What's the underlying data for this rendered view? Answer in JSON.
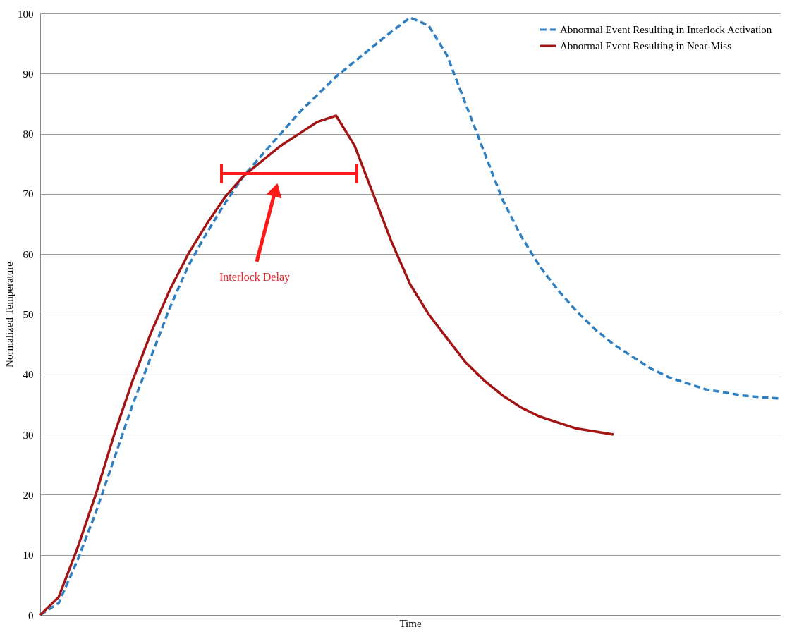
{
  "chart_data": {
    "type": "line",
    "xlabel": "Time",
    "ylabel": "Normalized Temperature",
    "categories": [
      null,
      null,
      null,
      null,
      null,
      null,
      null,
      null,
      null,
      null,
      null,
      null,
      null,
      null,
      null,
      null,
      null,
      null,
      null,
      null,
      null,
      null,
      null,
      null,
      null,
      null,
      null,
      null,
      null,
      null,
      null,
      null,
      null,
      null,
      null,
      null,
      null,
      null,
      null,
      null,
      null
    ],
    "series": [
      {
        "name": "Abnormal Event Resulting in Interlock Activation",
        "color": "#2e7fc1",
        "line_style": "dashed",
        "values": [
          0,
          2,
          9,
          17,
          26,
          35,
          43,
          51,
          58,
          63.5,
          68.5,
          73,
          76.5,
          80,
          83.5,
          86.5,
          89.5,
          92,
          94.5,
          97,
          99.3,
          98,
          93,
          85,
          77,
          69,
          63,
          58,
          54,
          50.5,
          47.5,
          45,
          43,
          41,
          39.5,
          38.5,
          37.5,
          37,
          36.5,
          36.2,
          36
        ]
      },
      {
        "name": "Abnormal Event Resulting in Near-Miss",
        "color": "#a31515",
        "line_style": "solid",
        "values": [
          0,
          3,
          11,
          20,
          30,
          39,
          47,
          54,
          60,
          65,
          69.5,
          73,
          75.5,
          78,
          80,
          82,
          83,
          78,
          70,
          62,
          55,
          50,
          46,
          42,
          39,
          36.5,
          34.5,
          33,
          32,
          31,
          30.5,
          30,
          null,
          null,
          null,
          null,
          null,
          null,
          null,
          null,
          null
        ]
      }
    ],
    "ylim": [
      0,
      100
    ],
    "yticks": [
      0,
      10,
      20,
      30,
      40,
      50,
      60,
      70,
      80,
      90,
      100
    ],
    "grid": "y",
    "legend": "top right",
    "tick_labels": "y",
    "marker": "none",
    "annotations": [
      "Interlock Delay"
    ]
  }
}
